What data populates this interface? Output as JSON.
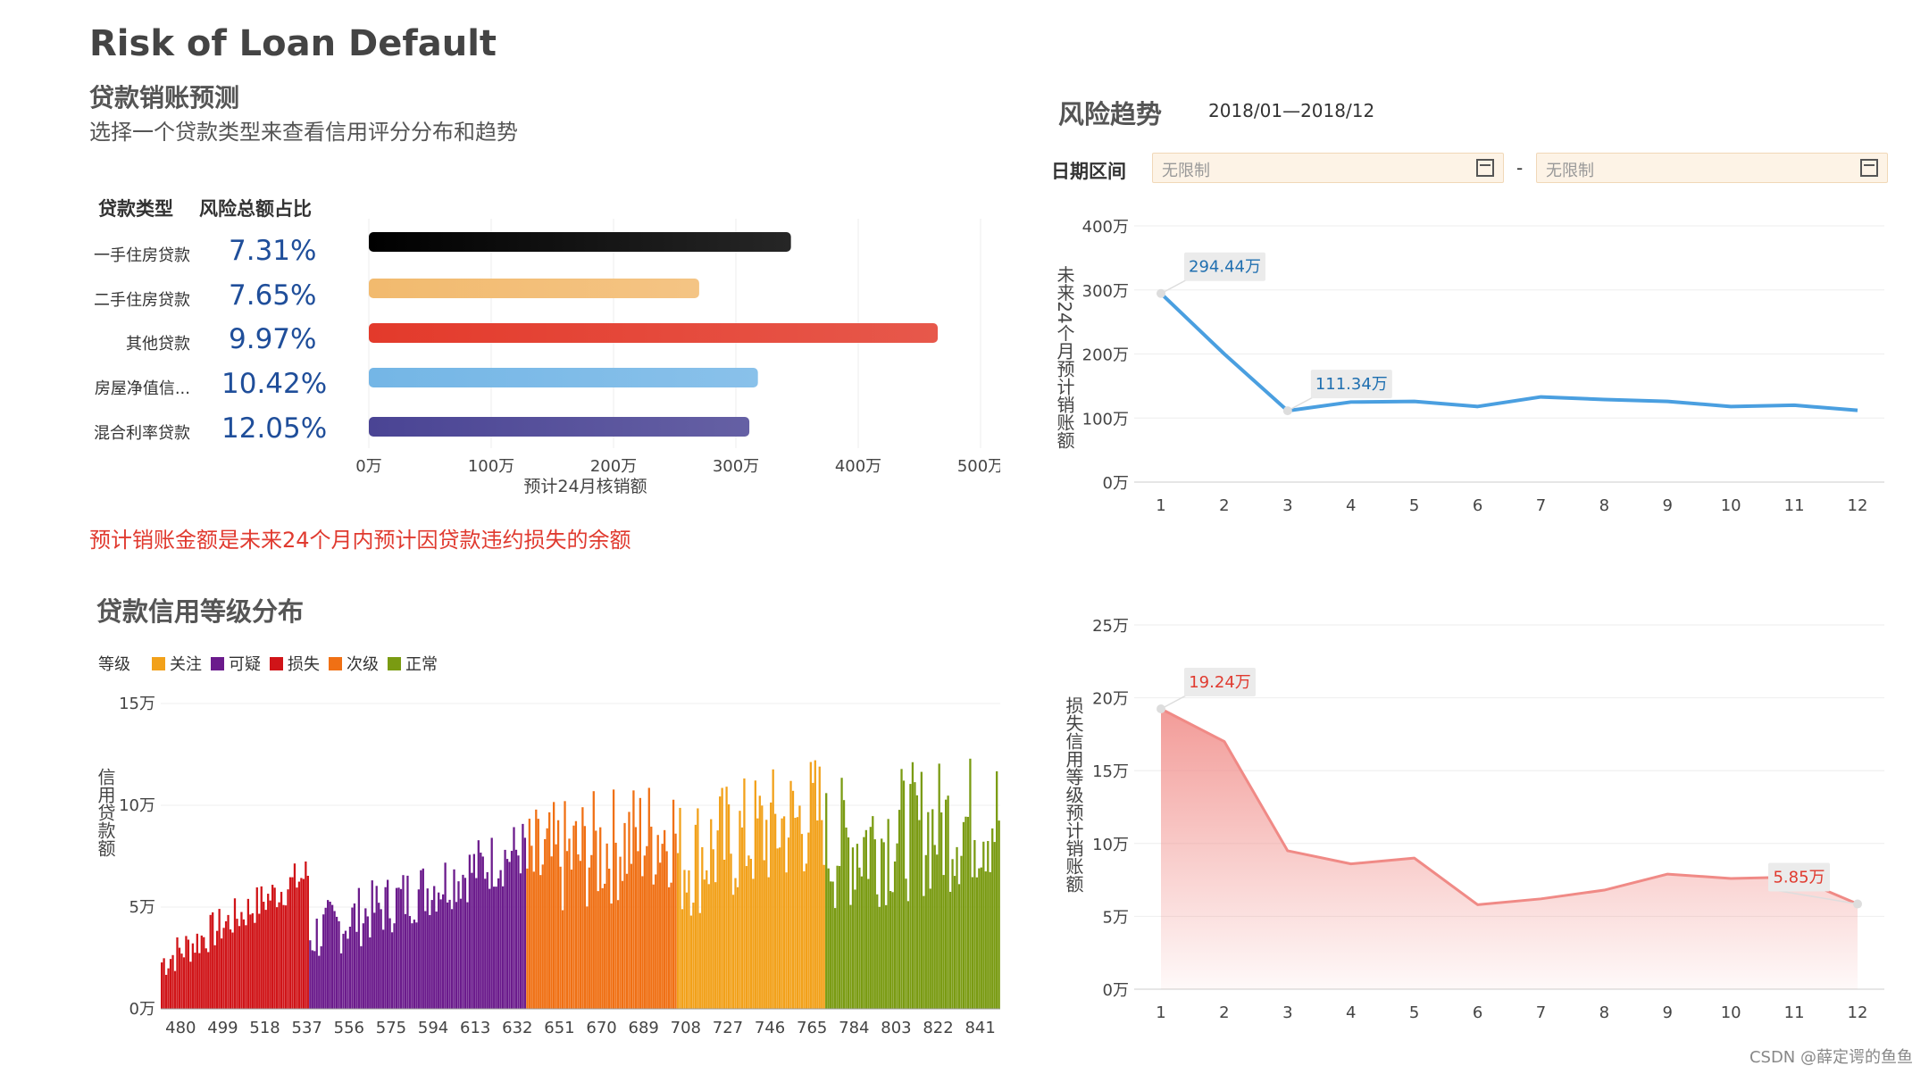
{
  "header": {
    "title": "Risk of Loan Default",
    "subtitle": "贷款销账预测",
    "description": "选择一个贷款类型来查看信用评分分布和趋势"
  },
  "loan_table": {
    "col_type": "贷款类型",
    "col_share": "风险总额占比",
    "rows": [
      {
        "type": "一手住房贷款",
        "share": "7.31%"
      },
      {
        "type": "二手住房贷款",
        "share": "7.65%"
      },
      {
        "type": "其他贷款",
        "share": "9.97%"
      },
      {
        "type": "房屋净值信...",
        "share": "10.42%"
      },
      {
        "type": "混合利率贷款",
        "share": "12.05%"
      }
    ]
  },
  "note": "预计销账金额是未来24个月内预计因贷款违约损失的余额",
  "distribution": {
    "title": "贷款信用等级分布",
    "legend_label": "等级",
    "legend": [
      {
        "name": "关注",
        "color": "#f2a11a"
      },
      {
        "name": "可疑",
        "color": "#6b1b8c"
      },
      {
        "name": "损失",
        "color": "#d01418"
      },
      {
        "name": "次级",
        "color": "#f07014"
      },
      {
        "name": "正常",
        "color": "#7a9b12"
      }
    ]
  },
  "trend": {
    "title": "风险趋势",
    "range": "2018/01—2018/12",
    "date_label": "日期区间",
    "date_start_placeholder": "无限制",
    "date_end_placeholder": "无限制",
    "date_sep": "-"
  },
  "watermark": "CSDN @薛定谔的鱼鱼",
  "chart_data": [
    {
      "type": "bar",
      "orientation": "horizontal",
      "categories": [
        "一手住房贷款",
        "二手住房贷款",
        "其他贷款",
        "房屋净值信...",
        "混合利率贷款"
      ],
      "values": [
        345,
        270,
        465,
        318,
        311
      ],
      "colors": [
        "#000000",
        "#f2ba6e",
        "#e33a2b",
        "#74b6e6",
        "#4a4494"
      ],
      "xlabel": "预计24月核销额",
      "ticks": [
        "0万",
        "100万",
        "200万",
        "300万",
        "400万",
        "500万"
      ],
      "xlim": [
        0,
        500
      ],
      "unit": "万"
    },
    {
      "type": "bar",
      "x_range": [
        471,
        850
      ],
      "x_ticks": [
        "480",
        "499",
        "518",
        "537",
        "556",
        "575",
        "594",
        "613",
        "632",
        "651",
        "670",
        "689",
        "708",
        "727",
        "746",
        "765",
        "784",
        "803",
        "822",
        "841"
      ],
      "ylabel": "信用贷款额",
      "y_ticks": [
        "0万",
        "5万",
        "10万",
        "15万"
      ],
      "ylim": [
        0,
        15
      ],
      "unit": "万",
      "grade_segments": [
        {
          "grade": "损失",
          "from": 471,
          "to": 538,
          "color": "#d01418",
          "base": 2.2,
          "growth": 2.2
        },
        {
          "grade": "可疑",
          "from": 538,
          "to": 636,
          "color": "#6b1b8c",
          "base": 3.4,
          "growth": 2.2
        },
        {
          "grade": "次级",
          "from": 636,
          "to": 704,
          "color": "#f07014",
          "base": 6.6,
          "growth": 1.0
        },
        {
          "grade": "关注",
          "from": 704,
          "to": 771,
          "color": "#f2a11a",
          "base": 7.0,
          "growth": 1.2
        },
        {
          "grade": "正常",
          "from": 771,
          "to": 850,
          "color": "#7a9b12",
          "base": 7.6,
          "growth": 0.8
        }
      ]
    },
    {
      "type": "line",
      "x": [
        1,
        2,
        3,
        4,
        5,
        6,
        7,
        8,
        9,
        10,
        11,
        12
      ],
      "values": [
        294.44,
        200,
        111.34,
        125,
        126,
        118,
        133,
        129,
        126,
        118,
        120,
        112
      ],
      "ylabel": "未来24个月预计销账额",
      "y_ticks": [
        "0万",
        "100万",
        "200万",
        "300万",
        "400万"
      ],
      "ylim": [
        0,
        400
      ],
      "color": "#4a9fe0",
      "annotations": [
        {
          "x": 1,
          "label": "294.44万"
        },
        {
          "x": 3,
          "label": "111.34万"
        }
      ]
    },
    {
      "type": "area",
      "x": [
        1,
        2,
        3,
        4,
        5,
        6,
        7,
        8,
        9,
        10,
        11,
        12
      ],
      "values": [
        19.24,
        17.0,
        9.5,
        8.6,
        9.0,
        5.8,
        6.2,
        6.8,
        7.9,
        7.6,
        7.7,
        5.85
      ],
      "ylabel": "损失信用等级预计销账额",
      "y_ticks": [
        "0万",
        "5万",
        "10万",
        "15万",
        "20万",
        "25万"
      ],
      "ylim": [
        0,
        25
      ],
      "color": "#f08a86",
      "annotations": [
        {
          "x": 1,
          "label": "19.24万"
        },
        {
          "x": 12,
          "label": "5.85万"
        }
      ]
    }
  ]
}
